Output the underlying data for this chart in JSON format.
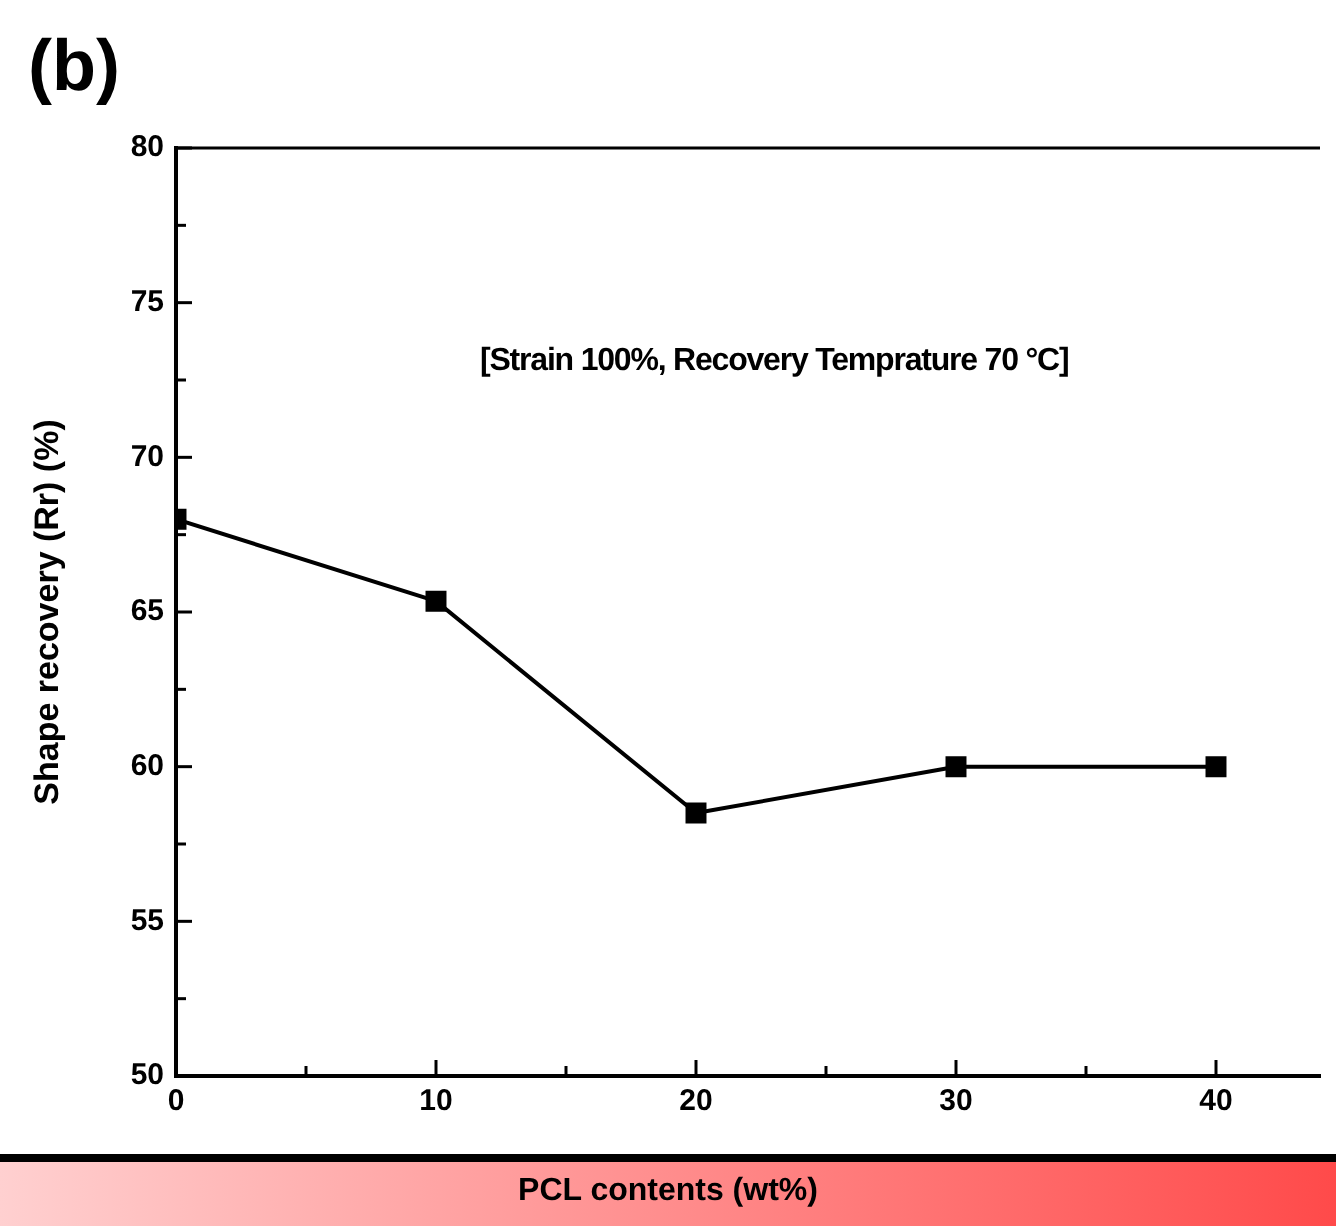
{
  "chart_data": {
    "type": "line",
    "title": "(b)",
    "xlabel": "PCL contents (wt%)",
    "ylabel": "Shape recovery (Rr) (%)",
    "annotations": [
      "[Strain 100%, Recovery Temprature 70 °C]"
    ],
    "x": [
      0,
      10,
      20,
      30,
      40
    ],
    "series": [
      {
        "color": "#000000",
        "values": [
          68,
          65.35,
          58.5,
          60,
          60
        ]
      }
    ],
    "xlim": [
      0,
      44
    ],
    "xticks": [
      0,
      {
        "value": 5,
        "label": null
      },
      10,
      {
        "value": 15,
        "label": null
      },
      20,
      {
        "value": 25,
        "label": null
      },
      30,
      {
        "value": 35,
        "label": null
      },
      40
    ],
    "ylim": [
      50,
      80
    ],
    "yticks": [
      50,
      {
        "value": 52.5,
        "label": null
      },
      55,
      {
        "value": 57.5,
        "label": null
      },
      60,
      {
        "value": 62.5,
        "label": null
      },
      65,
      {
        "value": 67.5,
        "label": null
      },
      70,
      {
        "value": 72.5,
        "label": null
      },
      75,
      {
        "value": 77.5,
        "label": null
      },
      80
    ],
    "grid": false,
    "legend": false,
    "marker": "square",
    "line_style": "solid"
  }
}
